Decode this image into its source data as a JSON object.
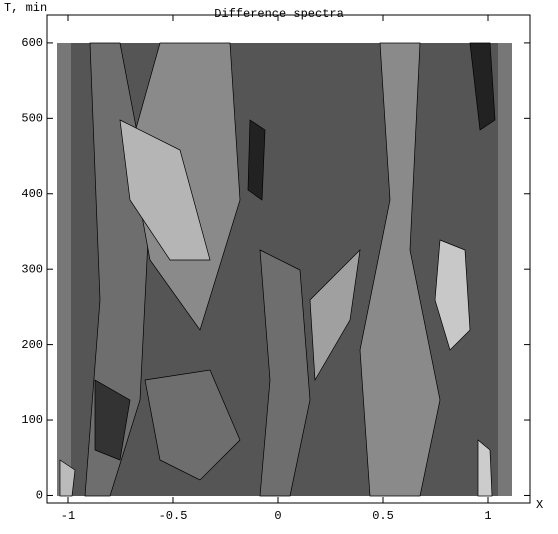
{
  "chart_data": {
    "type": "contour",
    "title": "Difference spectra",
    "x_label": "X",
    "y_label": "T, min",
    "xlim": [
      -1.1,
      1.2
    ],
    "xticks": [
      -1,
      -0.5,
      0,
      0.5,
      1
    ],
    "ylim": [
      -10,
      637
    ],
    "yticks": [
      0,
      100,
      200,
      300,
      400,
      500,
      600
    ]
  }
}
